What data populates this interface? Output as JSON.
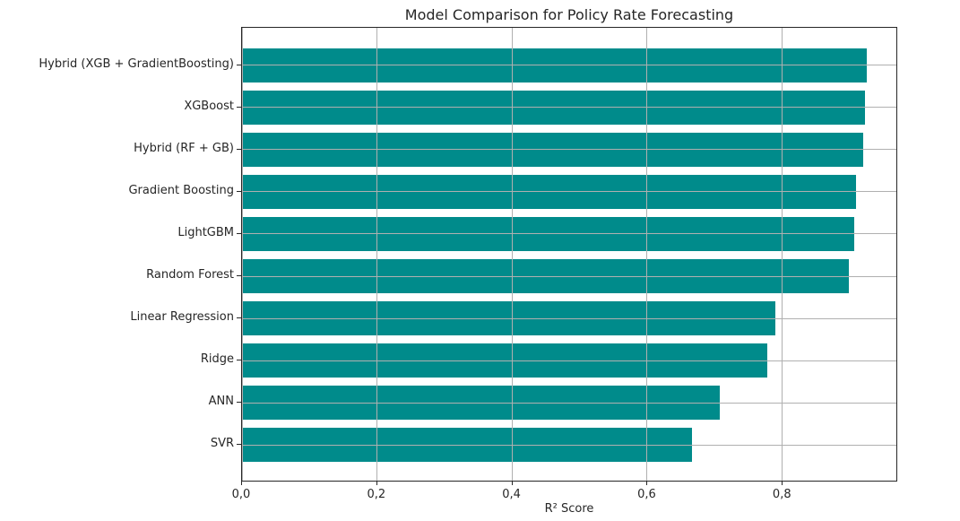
{
  "chart_data": {
    "type": "bar",
    "orientation": "horizontal",
    "title": "Model Comparison for Policy Rate Forecasting",
    "xlabel": "R² Score",
    "ylabel": "",
    "categories": [
      "Hybrid (XGB + GradientBoosting)",
      "XGBoost",
      "Hybrid (RF + GB)",
      "Gradient Boosting",
      "LightGBM",
      "Random Forest",
      "Linear Regression",
      "Ridge",
      "ANN",
      "SVR"
    ],
    "values": [
      0.924,
      0.921,
      0.919,
      0.908,
      0.906,
      0.898,
      0.789,
      0.777,
      0.707,
      0.666
    ],
    "xlim": [
      0,
      0.9707
    ],
    "xticks": [
      {
        "value": 0.0,
        "label": "0,0"
      },
      {
        "value": 0.2,
        "label": "0,2"
      },
      {
        "value": 0.4,
        "label": "0,4"
      },
      {
        "value": 0.6,
        "label": "0,6"
      },
      {
        "value": 0.8,
        "label": "0,8"
      }
    ],
    "grid": true,
    "grid_on_top": true,
    "legend": null,
    "colors": {
      "bar": "#008b8b",
      "grid": "#b0b0b0",
      "spine": "#262626",
      "text": "#262626",
      "background": "#ffffff"
    }
  }
}
